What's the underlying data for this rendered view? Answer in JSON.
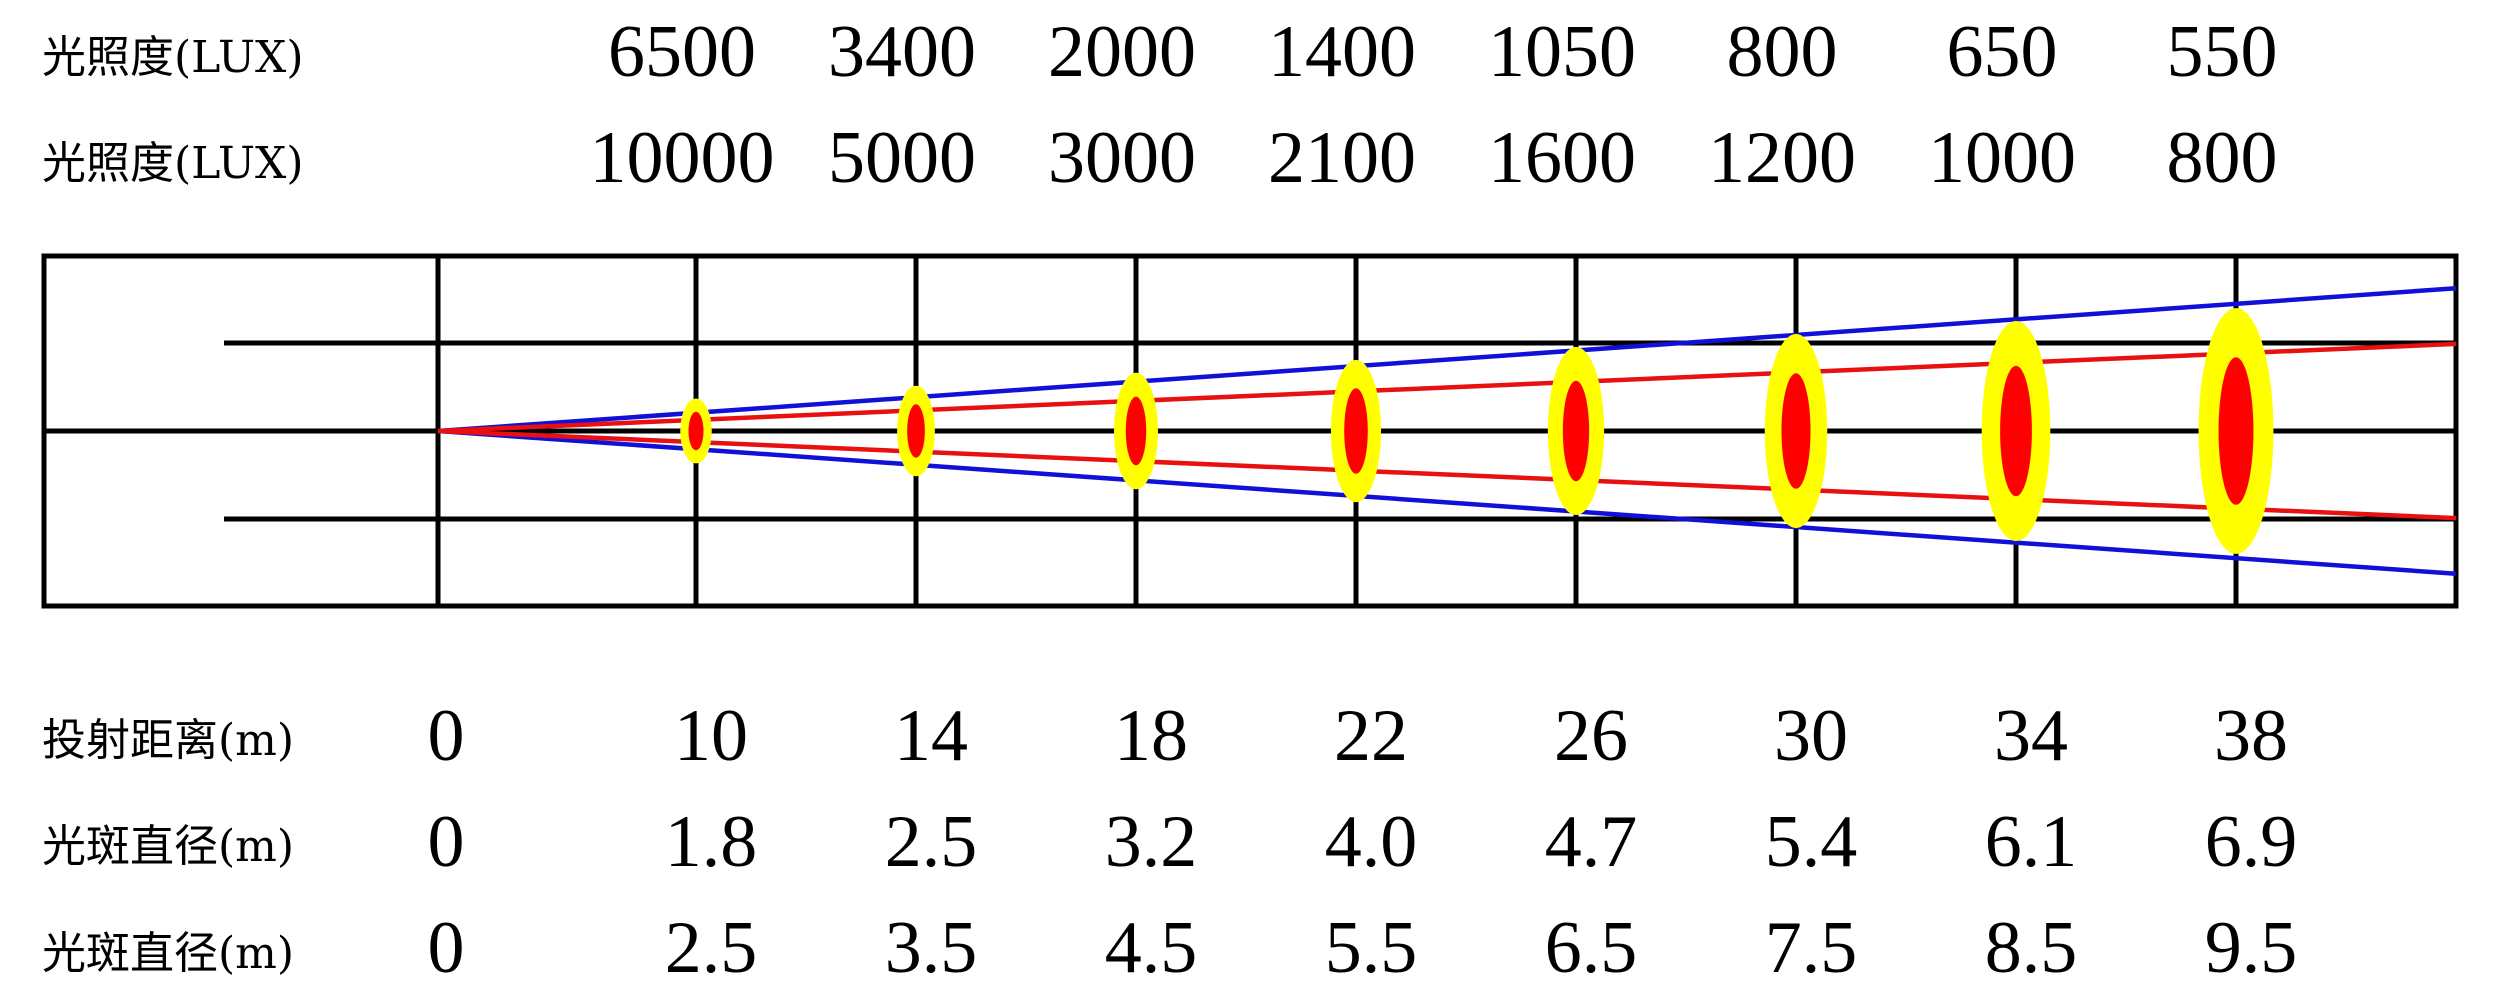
{
  "rows_top": [
    {
      "label": "光照度(LUX)",
      "values": [
        "6500",
        "3400",
        "2000",
        "1400",
        "1050",
        "800",
        "650",
        "550"
      ]
    },
    {
      "label": "光照度(LUX)",
      "values": [
        "10000",
        "5000",
        "3000",
        "2100",
        "1600",
        "1200",
        "1000",
        "800"
      ]
    }
  ],
  "rows_bottom": [
    {
      "label": "投射距离(m)",
      "values": [
        "0",
        "10",
        "14",
        "18",
        "22",
        "26",
        "30",
        "34",
        "38"
      ]
    },
    {
      "label": "光斑直径(m)",
      "values": [
        "0",
        "1.8",
        "2.5",
        "3.2",
        "4.0",
        "4.7",
        "5.4",
        "6.1",
        "6.9"
      ]
    },
    {
      "label": "光斑直径(m)",
      "values": [
        "0",
        "2.5",
        "3.5",
        "4.5",
        "5.5",
        "6.5",
        "7.5",
        "8.5",
        "9.5"
      ]
    }
  ],
  "diagram": {
    "distances_m": [
      10,
      14,
      18,
      22,
      26,
      30,
      34,
      38
    ],
    "inner_diameter_m": [
      1.8,
      2.5,
      3.2,
      4.0,
      4.7,
      5.4,
      6.1,
      6.9
    ],
    "outer_diameter_m": [
      2.5,
      3.5,
      4.5,
      5.5,
      6.5,
      7.5,
      8.5,
      9.5
    ],
    "colors": {
      "grid": "#000000",
      "outer_beam_line": "#1010d8",
      "inner_beam_line": "#e81010",
      "outer_spot": "#ffff00",
      "inner_spot": "#ff0000"
    }
  }
}
